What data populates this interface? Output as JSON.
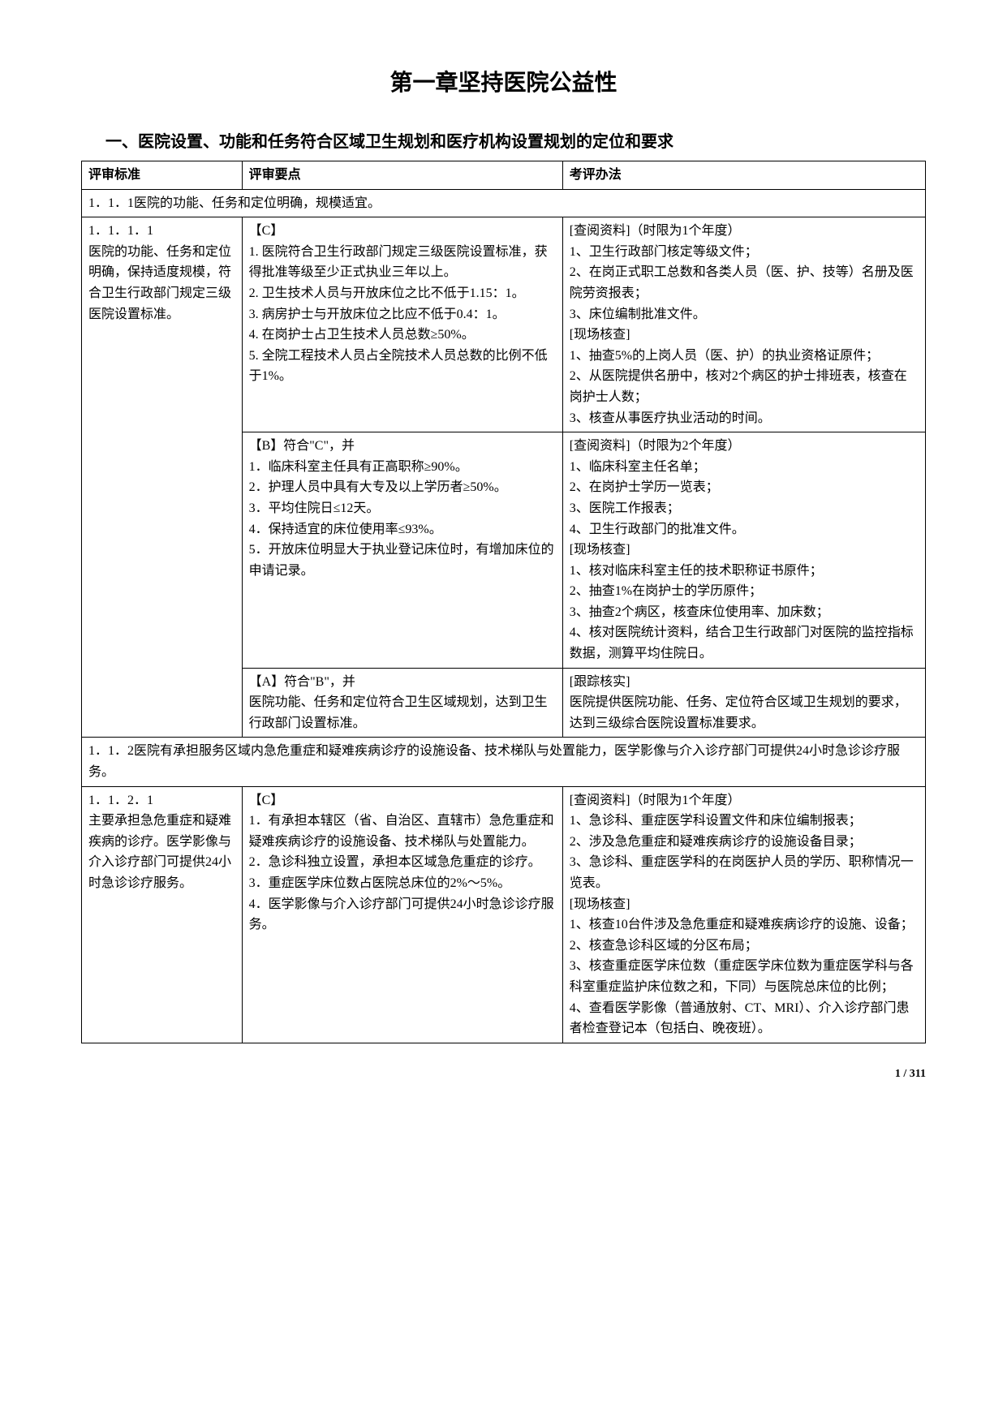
{
  "chapter_title": "第一章坚持医院公益性",
  "section_title": "一、医院设置、功能和任务符合区域卫生规划和医疗机构设置规划的定位和要求",
  "headers": {
    "col1": "评审标准",
    "col2": "评审要点",
    "col3": "考评办法"
  },
  "sub1": "1．1．1医院的功能、任务和定位明确，规模适宜。",
  "r1": {
    "std": "1．1．1．1\n医院的功能、任务和定位明确，保持适度规模，符合卫生行政部门规定三级医院设置标准。",
    "c_pts": "【C】\n1. 医院符合卫生行政部门规定三级医院设置标准，获得批准等级至少正式执业三年以上。\n2. 卫生技术人员与开放床位之比不低于1.15：1。\n3. 病房护士与开放床位之比应不低于0.4：1。\n4. 在岗护士占卫生技术人员总数≥50%。\n5. 全院工程技术人员占全院技术人员总数的比例不低于1%。",
    "c_eval": "[查阅资料]（时限为1个年度）\n1、卫生行政部门核定等级文件；\n2、在岗正式职工总数和各类人员（医、护、技等）名册及医院劳资报表；\n3、床位编制批准文件。\n[现场核查]\n1、抽查5%的上岗人员（医、护）的执业资格证原件；\n2、从医院提供名册中，核对2个病区的护士排班表，核查在岗护士人数；\n3、核查从事医疗执业活动的时间。",
    "b_pts": "【B】符合\"C\"，并\n1．临床科室主任具有正高职称≥90%。\n2．护理人员中具有大专及以上学历者≥50%。\n3．平均住院日≤12天。\n4．保持适宜的床位使用率≤93%。\n5．开放床位明显大于执业登记床位时，有增加床位的申请记录。",
    "b_eval": "[查阅资料]（时限为2个年度）\n1、临床科室主任名单；\n2、在岗护士学历一览表；\n3、医院工作报表；\n4、卫生行政部门的批准文件。\n[现场核查]\n1、核对临床科室主任的技术职称证书原件；\n2、抽查1%在岗护士的学历原件；\n3、抽查2个病区，核查床位使用率、加床数；\n4、核对医院统计资料，结合卫生行政部门对医院的监控指标数据，测算平均住院日。",
    "a_pts": "【A】符合\"B\"，并\n医院功能、任务和定位符合卫生区域规划，达到卫生行政部门设置标准。",
    "a_eval": "[跟踪核实]\n医院提供医院功能、任务、定位符合区域卫生规划的要求，达到三级综合医院设置标准要求。"
  },
  "sub2": "1．1．2医院有承担服务区域内急危重症和疑难疾病诊疗的设施设备、技术梯队与处置能力，医学影像与介入诊疗部门可提供24小时急诊诊疗服务。",
  "r2": {
    "std": "1．1．2．1\n主要承担急危重症和疑难疾病的诊疗。医学影像与介入诊疗部门可提供24小时急诊诊疗服务。",
    "c_pts": "【C】\n1．有承担本辖区（省、自治区、直辖市）急危重症和疑难疾病诊疗的设施设备、技术梯队与处置能力。\n2．急诊科独立设置，承担本区域急危重症的诊疗。\n3．重症医学床位数占医院总床位的2%～5%。\n4．医学影像与介入诊疗部门可提供24小时急诊诊疗服务。",
    "c_eval": "[查阅资料]（时限为1个年度）\n1、急诊科、重症医学科设置文件和床位编制报表；\n2、涉及急危重症和疑难疾病诊疗的设施设备目录；\n3、急诊科、重症医学科的在岗医护人员的学历、职称情况一览表。\n[现场核查]\n1、核查10台件涉及急危重症和疑难疾病诊疗的设施、设备；\n2、核查急诊科区域的分区布局；\n3、核查重症医学床位数（重症医学床位数为重症医学科与各科室重症监护床位数之和，下同）与医院总床位的比例；\n4、查看医学影像（普通放射、CT、MRI）、介入诊疗部门患者检查登记本（包括白、晚夜班）。"
  },
  "page_number": "1 / 311"
}
